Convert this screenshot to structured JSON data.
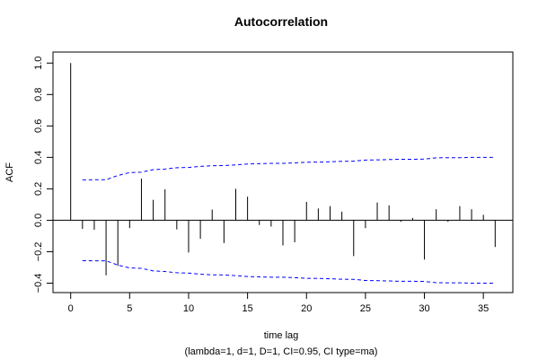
{
  "chart_data": {
    "type": "bar",
    "title": "Autocorrelation",
    "xlabel": "time lag",
    "ylabel": "ACF",
    "subtitle": "(lambda=1, d=1, D=1, CI=0.95, CI type=ma)",
    "xlim": [
      -1.5,
      37.5
    ],
    "ylim": [
      -0.46,
      1.07
    ],
    "x_ticks": [
      0,
      5,
      10,
      15,
      20,
      25,
      30,
      35
    ],
    "x_tick_labels": [
      "0",
      "5",
      "10",
      "15",
      "20",
      "25",
      "30",
      "35"
    ],
    "y_ticks": [
      -0.4,
      -0.2,
      0.0,
      0.2,
      0.4,
      0.6,
      0.8,
      1.0
    ],
    "y_tick_labels": [
      "−0.4",
      "−0.2",
      "0.0",
      "0.2",
      "0.4",
      "0.6",
      "0.8",
      "1.0"
    ],
    "lags": [
      0,
      1,
      2,
      3,
      4,
      5,
      6,
      7,
      8,
      9,
      10,
      11,
      12,
      13,
      14,
      15,
      16,
      17,
      18,
      19,
      20,
      21,
      22,
      23,
      24,
      25,
      26,
      27,
      28,
      29,
      30,
      31,
      32,
      33,
      34,
      35,
      36
    ],
    "acf": [
      1.0,
      -0.055,
      -0.06,
      -0.35,
      -0.29,
      -0.05,
      0.265,
      0.13,
      0.197,
      -0.058,
      -0.205,
      -0.118,
      0.068,
      -0.145,
      0.2,
      0.15,
      -0.03,
      -0.04,
      -0.16,
      -0.14,
      0.117,
      0.075,
      0.09,
      0.055,
      -0.228,
      -0.05,
      0.113,
      0.095,
      -0.01,
      0.015,
      -0.25,
      0.07,
      -0.01,
      0.09,
      0.07,
      0.035,
      -0.17
    ],
    "ci_upper": [
      0.257,
      0.258,
      0.258,
      0.285,
      0.303,
      0.306,
      0.322,
      0.326,
      0.334,
      0.336,
      0.343,
      0.347,
      0.348,
      0.352,
      0.358,
      0.36,
      0.362,
      0.362,
      0.365,
      0.369,
      0.37,
      0.372,
      0.375,
      0.376,
      0.383,
      0.384,
      0.386,
      0.388,
      0.388,
      0.389,
      0.397,
      0.398,
      0.398,
      0.4,
      0.4,
      0.4
    ],
    "colors": {
      "bars": "#000000",
      "ci": "#0000ff",
      "axis": "#000000"
    }
  }
}
